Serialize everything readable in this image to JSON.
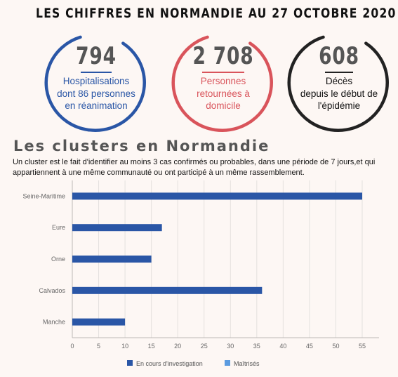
{
  "headline": "LES CHIFFRES EN NORMANDIE AU 27 OCTOBRE 2020",
  "stats": [
    {
      "number": "794",
      "lines": [
        "Hospitalisations",
        "dont 86 personnes",
        "en réanimation"
      ],
      "color": "#2a56a6"
    },
    {
      "number": "2 708",
      "lines": [
        "Personnes",
        "retournées à",
        "domicile"
      ],
      "color": "#d9545b"
    },
    {
      "number": "608",
      "lines": [
        "Décès",
        "depuis le début de",
        "l'épidémie"
      ],
      "color": "#222222"
    }
  ],
  "section": {
    "title": "Les clusters en Normandie",
    "subtitle": "Un cluster est le fait d'identifier au moins 3 cas confirmés ou probables, dans une période de 7 jours,et qui appartiennent à une même communauté ou ont participé à un même rassemblement."
  },
  "chart_data": {
    "type": "bar",
    "orientation": "horizontal",
    "categories": [
      "Seine-Maritime",
      "Eure",
      "Orne",
      "Calvados",
      "Manche"
    ],
    "series": [
      {
        "name": "En cours d'investigation",
        "values": [
          55,
          17,
          15,
          36,
          10
        ],
        "color": "#2a56a6"
      },
      {
        "name": "Maîtrisés",
        "values": [
          0,
          0,
          0,
          0,
          0
        ],
        "color": "#5b9be0"
      }
    ],
    "xlim": [
      0,
      55
    ],
    "xticks": [
      0,
      5,
      10,
      15,
      20,
      25,
      30,
      35,
      40,
      45,
      50,
      55
    ],
    "grid": true,
    "legend_position": "bottom"
  }
}
